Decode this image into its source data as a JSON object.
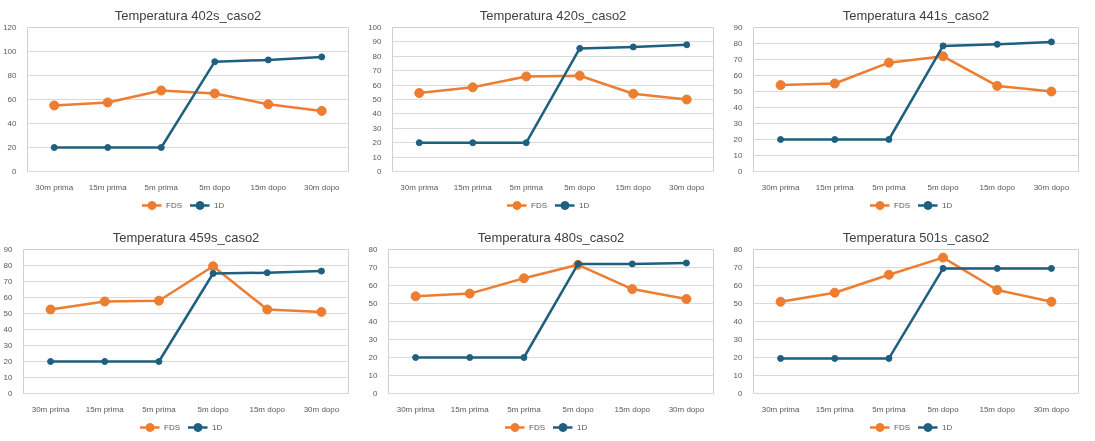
{
  "chart_data": [
    {
      "type": "line",
      "title": "Temperatura 402s_caso2",
      "categories": [
        "30m prima",
        "15m prima",
        "5m prima",
        "5m dopo",
        "15m dopo",
        "30m dopo"
      ],
      "ylim": [
        0,
        120
      ],
      "yticks": [
        0,
        20,
        40,
        60,
        80,
        100,
        120
      ],
      "grid": "y",
      "legend": "bottom",
      "marker": "circle",
      "series": [
        {
          "name": "FDS",
          "color": "#ed7d31",
          "values": [
            55,
            57.5,
            67.5,
            65,
            56,
            50.5
          ]
        },
        {
          "name": "1D",
          "color": "#1f5f7f",
          "values": [
            20,
            20,
            20,
            91.5,
            93,
            95.5
          ]
        }
      ]
    },
    {
      "type": "line",
      "title": "Temperatura 420s_caso2",
      "categories": [
        "30m prima",
        "15m prima",
        "5m prima",
        "5m dopo",
        "15m dopo",
        "30m dopo"
      ],
      "ylim": [
        0,
        100
      ],
      "yticks": [
        0,
        10,
        20,
        30,
        40,
        50,
        60,
        70,
        80,
        90,
        100
      ],
      "grid": "y",
      "legend": "bottom",
      "marker": "circle",
      "series": [
        {
          "name": "FDS",
          "color": "#ed7d31",
          "values": [
            54.5,
            58.5,
            66,
            66.5,
            54,
            50
          ]
        },
        {
          "name": "1D",
          "color": "#1f5f7f",
          "values": [
            20,
            20,
            20,
            85.5,
            86.5,
            88
          ]
        }
      ]
    },
    {
      "type": "line",
      "title": "Temperatura 441s_caso2",
      "categories": [
        "30m prima",
        "15m prima",
        "5m prima",
        "5m dopo",
        "15m dopo",
        "30m dopo"
      ],
      "ylim": [
        0,
        90
      ],
      "yticks": [
        0,
        10,
        20,
        30,
        40,
        50,
        60,
        70,
        80,
        90
      ],
      "grid": "y",
      "legend": "bottom",
      "marker": "circle",
      "series": [
        {
          "name": "FDS",
          "color": "#ed7d31",
          "values": [
            54,
            55,
            68,
            72,
            53.5,
            50
          ]
        },
        {
          "name": "1D",
          "color": "#1f5f7f",
          "values": [
            20,
            20,
            20,
            78.5,
            79.5,
            81
          ]
        }
      ]
    },
    {
      "type": "line",
      "title": "Temperatura 459s_caso2",
      "categories": [
        "30m prima",
        "15m prima",
        "5m prima",
        "5m dopo",
        "15m dopo",
        "30m dopo"
      ],
      "ylim": [
        0,
        90
      ],
      "yticks": [
        0,
        10,
        20,
        30,
        40,
        50,
        60,
        70,
        80,
        90
      ],
      "grid": "y",
      "legend": "bottom",
      "marker": "circle",
      "series": [
        {
          "name": "FDS",
          "color": "#ed7d31",
          "values": [
            52.5,
            57.5,
            58,
            79.5,
            52.5,
            51
          ]
        },
        {
          "name": "1D",
          "color": "#1f5f7f",
          "values": [
            20,
            20,
            20,
            75,
            75.5,
            76.5
          ]
        }
      ]
    },
    {
      "type": "line",
      "title": "Temperatura 480s_caso2",
      "categories": [
        "30m prima",
        "15m prima",
        "5m prima",
        "5m dopo",
        "15m dopo",
        "30m dopo"
      ],
      "ylim": [
        0,
        80
      ],
      "yticks": [
        0,
        10,
        20,
        30,
        40,
        50,
        60,
        70,
        80
      ],
      "grid": "y",
      "legend": "bottom",
      "marker": "circle",
      "series": [
        {
          "name": "FDS",
          "color": "#ed7d31",
          "values": [
            54,
            55.5,
            64,
            71.5,
            58,
            52.5
          ]
        },
        {
          "name": "1D",
          "color": "#1f5f7f",
          "values": [
            20,
            20,
            20,
            72,
            72,
            72.5
          ]
        }
      ]
    },
    {
      "type": "line",
      "title": "Temperatura 501s_caso2",
      "categories": [
        "30m prima",
        "15m prima",
        "5m prima",
        "5m dopo",
        "15m dopo",
        "30m dopo"
      ],
      "ylim": [
        0,
        80
      ],
      "yticks": [
        0,
        10,
        20,
        30,
        40,
        50,
        60,
        70,
        80
      ],
      "grid": "y",
      "legend": "bottom",
      "marker": "circle",
      "series": [
        {
          "name": "FDS",
          "color": "#ed7d31",
          "values": [
            51,
            56,
            66,
            75.5,
            57.5,
            51
          ]
        },
        {
          "name": "1D",
          "color": "#1f5f7f",
          "values": [
            19.5,
            19.5,
            19.5,
            69.5,
            69.5,
            69.5
          ]
        }
      ]
    }
  ]
}
